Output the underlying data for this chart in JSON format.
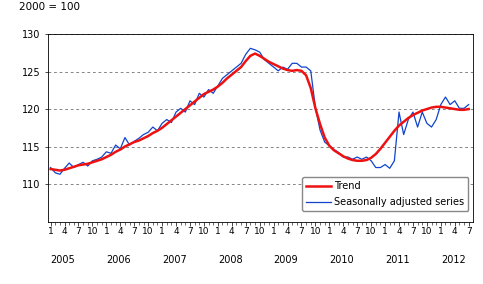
{
  "title": "2000 = 100",
  "ylim": [
    105,
    130
  ],
  "yticks": [
    110,
    115,
    120,
    125,
    130
  ],
  "background_color": "#ffffff",
  "trend_color": "#ee1111",
  "seasonal_color": "#1144cc",
  "trend_linewidth": 1.8,
  "seasonal_linewidth": 0.9,
  "legend_trend": "Trend",
  "legend_seasonal": "Seasonally adjusted series",
  "trend_y": [
    112.0,
    111.9,
    111.8,
    111.9,
    112.1,
    112.3,
    112.5,
    112.6,
    112.7,
    112.9,
    113.1,
    113.3,
    113.6,
    113.9,
    114.3,
    114.6,
    115.0,
    115.3,
    115.6,
    115.8,
    116.1,
    116.4,
    116.8,
    117.1,
    117.5,
    118.0,
    118.5,
    119.0,
    119.5,
    120.0,
    120.5,
    121.0,
    121.5,
    122.0,
    122.3,
    122.6,
    123.0,
    123.5,
    124.1,
    124.6,
    125.1,
    125.6,
    126.4,
    127.1,
    127.4,
    127.1,
    126.7,
    126.3,
    126.0,
    125.7,
    125.4,
    125.2,
    125.1,
    125.2,
    125.1,
    124.5,
    122.8,
    120.1,
    118.0,
    116.2,
    115.1,
    114.5,
    114.1,
    113.7,
    113.4,
    113.2,
    113.1,
    113.1,
    113.2,
    113.5,
    114.0,
    114.7,
    115.5,
    116.3,
    117.1,
    117.8,
    118.3,
    118.8,
    119.2,
    119.5,
    119.8,
    120.0,
    120.2,
    120.3,
    120.3,
    120.2,
    120.1,
    120.0,
    119.9,
    119.9,
    120.0
  ],
  "seasonal_y": [
    112.2,
    111.5,
    111.3,
    112.1,
    112.8,
    112.2,
    112.6,
    112.9,
    112.4,
    113.1,
    113.3,
    113.6,
    114.3,
    114.1,
    115.2,
    114.7,
    116.2,
    115.2,
    115.7,
    116.1,
    116.6,
    116.9,
    117.6,
    117.1,
    118.1,
    118.6,
    118.2,
    119.6,
    120.1,
    119.6,
    121.1,
    120.6,
    122.1,
    121.6,
    122.6,
    122.1,
    123.1,
    124.1,
    124.6,
    125.1,
    125.6,
    126.1,
    127.3,
    128.1,
    127.9,
    127.6,
    126.6,
    126.1,
    125.6,
    125.1,
    125.6,
    125.3,
    126.1,
    126.1,
    125.6,
    125.6,
    125.1,
    120.2,
    117.2,
    115.6,
    115.1,
    114.6,
    114.2,
    113.6,
    113.6,
    113.3,
    113.6,
    113.3,
    113.6,
    113.1,
    112.2,
    112.2,
    112.6,
    112.1,
    113.1,
    119.6,
    116.6,
    118.6,
    119.6,
    117.6,
    119.6,
    118.1,
    117.6,
    118.6,
    120.6,
    121.6,
    120.6,
    121.1,
    120.1,
    120.1,
    120.6
  ],
  "month_tick_positions": [
    0,
    3,
    6,
    9,
    12,
    15,
    18,
    21,
    24,
    27,
    30,
    33,
    36,
    39,
    42,
    45,
    48,
    51,
    54,
    57,
    60,
    63,
    66,
    69,
    72,
    75,
    78,
    81,
    84,
    87,
    90
  ],
  "month_tick_labels": [
    "1",
    "4",
    "7",
    "10",
    "1",
    "4",
    "7",
    "10",
    "1",
    "4",
    "7",
    "10",
    "1",
    "4",
    "7",
    "10",
    "1",
    "4",
    "7",
    "10",
    "1",
    "4",
    "7",
    "10",
    "1",
    "4",
    "7",
    "10",
    "1",
    "4",
    "7"
  ],
  "year_tick_positions": [
    0,
    12,
    24,
    36,
    48,
    60,
    72,
    84
  ],
  "year_tick_labels": [
    "2005",
    "2006",
    "2007",
    "2008",
    "2009",
    "2010",
    "2011",
    "2012"
  ],
  "xlim": [
    -0.5,
    91
  ]
}
